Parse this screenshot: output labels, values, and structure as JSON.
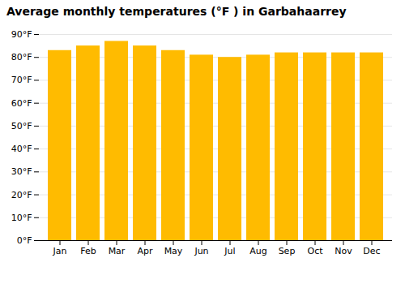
{
  "chart_data": {
    "type": "bar",
    "title": "Average monthly temperatures (°F ) in Garbahaarrey",
    "categories": [
      "Jan",
      "Feb",
      "Mar",
      "Apr",
      "May",
      "Jun",
      "Jul",
      "Aug",
      "Sep",
      "Oct",
      "Nov",
      "Dec"
    ],
    "values": [
      83,
      85,
      87,
      85,
      83,
      81,
      80,
      81,
      82,
      82,
      82,
      82
    ],
    "color": "#FFBB00",
    "ylim": [
      0,
      90
    ],
    "yticks": [
      {
        "value": 0,
        "label": "0°F"
      },
      {
        "value": 10,
        "label": "10°F"
      },
      {
        "value": 20,
        "label": "20°F"
      },
      {
        "value": 30,
        "label": "30°F"
      },
      {
        "value": 40,
        "label": "40°F"
      },
      {
        "value": 50,
        "label": "50°F"
      },
      {
        "value": 60,
        "label": "60°F"
      },
      {
        "value": 70,
        "label": "70°F"
      },
      {
        "value": 80,
        "label": "80°F"
      },
      {
        "value": 90,
        "label": "90°F"
      }
    ],
    "grid": true
  }
}
